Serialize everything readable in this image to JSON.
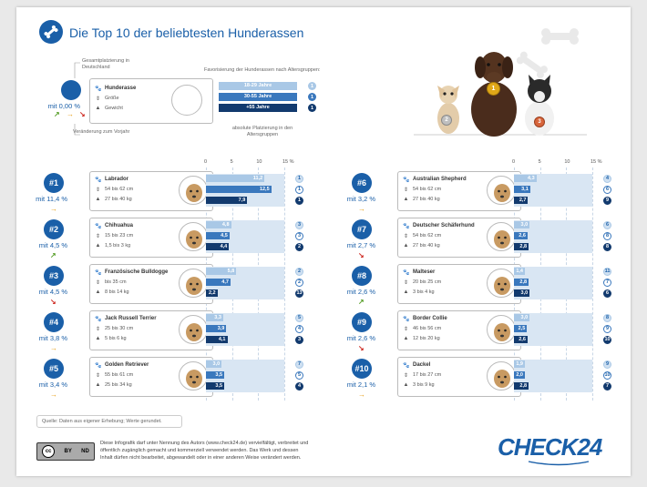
{
  "header": {
    "title": "Die Top 10 der beliebtesten Hunderassen"
  },
  "legend": {
    "gesamt_label": "Gesamtplatzierung in Deutschland",
    "mit_value": "mit 0,00 %",
    "veraenderung_label": "Veränderung zum Vorjahr",
    "attr_breed": "Hunderasse",
    "attr_size": "Größe",
    "attr_weight": "Gewicht",
    "favor_label": "Favorisierung der Hunderassen nach Altersgruppen:",
    "groups": [
      "18-29 Jahre",
      "30-55 Jahre",
      "+55 Jahre"
    ],
    "places": [
      "1",
      "1",
      "1"
    ],
    "absolute_label": "absolute Platzierung in den Altersgruppen"
  },
  "podium": [
    "1",
    "2",
    "3"
  ],
  "axis_ticks": [
    "0",
    "5",
    "10",
    "15 %"
  ],
  "colors": {
    "accent": "#1a5fa8",
    "bar_young": "#a9c8e6",
    "bar_mid": "#3a78bd",
    "bar_old": "#123a6e",
    "up": "#5aa02c",
    "down": "#d0342c",
    "flat": "#e8a11a"
  },
  "footer": {
    "source": "Quelle: Daten aus eigener Erhebung; Werte gerundet.",
    "license_icon": "cc-by-nd-icon",
    "license_labels": [
      "cc",
      "BY",
      "ND"
    ],
    "license_text_1": "Diese Infografik darf unter Nennung des Autors (www.check24.de) vervielfältigt, verbreitet und",
    "license_text_2": "öffentlich zugänglich gemacht und kommerziell verwendet werden. Das Werk und dessen",
    "license_text_3": "Inhalt dürfen nicht bearbeitet, abgewandelt oder in einer anderen Weise verändert werden.",
    "brand": "CHECK24"
  },
  "chart_data": {
    "type": "bar",
    "title": "Die Top 10 der beliebtesten Hunderassen",
    "xlim": [
      0,
      15
    ],
    "x_unit": "%",
    "series_order": [
      "18-29 Jahre",
      "30-55 Jahre",
      "+55 Jahre"
    ],
    "breeds": [
      {
        "rank": "#1",
        "name": "Labrador",
        "size": "54 bis 62 cm",
        "weight": "27 bis 40 kg",
        "share": "mit 11,4 %",
        "trend": "flat",
        "values": [
          11.2,
          12.5,
          7.9
        ],
        "labels": [
          "11,2",
          "12,5",
          "7,9"
        ],
        "places": [
          "1",
          "1",
          "1"
        ]
      },
      {
        "rank": "#2",
        "name": "Chihuahua",
        "size": "15 bis 23 cm",
        "weight": "1,5 bis 3 kg",
        "share": "mit 4,5 %",
        "trend": "up",
        "values": [
          4.8,
          4.5,
          4.4
        ],
        "labels": [
          "4,8",
          "4,5",
          "4,4"
        ],
        "places": [
          "3",
          "3",
          "2"
        ]
      },
      {
        "rank": "#3",
        "name": "Französische Bulldogge",
        "size": "bis 35 cm",
        "weight": "8 bis 14 kg",
        "share": "mit 4,5 %",
        "trend": "down",
        "values": [
          5.8,
          4.7,
          2.2
        ],
        "labels": [
          "5,8",
          "4,7",
          "2,2"
        ],
        "places": [
          "2",
          "2",
          "13"
        ]
      },
      {
        "rank": "#4",
        "name": "Jack Russell Terrier",
        "size": "25 bis 30 cm",
        "weight": "5 bis 6 kg",
        "share": "mit 3,8 %",
        "trend": "flat",
        "values": [
          3.3,
          3.9,
          4.1
        ],
        "labels": [
          "3,3",
          "3,9",
          "4,1"
        ],
        "places": [
          "5",
          "4",
          "3"
        ]
      },
      {
        "rank": "#5",
        "name": "Golden Retriever",
        "size": "55 bis 61 cm",
        "weight": "25 bis 34 kg",
        "share": "mit 3,4 %",
        "trend": "flat",
        "values": [
          3.0,
          3.5,
          3.5
        ],
        "labels": [
          "3,0",
          "3,5",
          "3,5"
        ],
        "places": [
          "7",
          "5",
          "4"
        ]
      },
      {
        "rank": "#6",
        "name": "Australian Shepherd",
        "size": "54 bis 62 cm",
        "weight": "27 bis 40 kg",
        "share": "mit 3,2 %",
        "trend": "flat",
        "values": [
          4.3,
          3.1,
          2.7
        ],
        "labels": [
          "4,3",
          "3,1",
          "2,7"
        ],
        "places": [
          "4",
          "6",
          "9"
        ]
      },
      {
        "rank": "#7",
        "name": "Deutscher Schäferhund",
        "size": "54 bis 62 cm",
        "weight": "27 bis 40 kg",
        "share": "mit 2,7 %",
        "trend": "down",
        "values": [
          3.0,
          2.6,
          2.8
        ],
        "labels": [
          "3,0",
          "2,6",
          "2,8"
        ],
        "places": [
          "6",
          "8",
          "8"
        ]
      },
      {
        "rank": "#8",
        "name": "Malteser",
        "size": "20 bis 25 cm",
        "weight": "3 bis 4 kg",
        "share": "mit 2,6 %",
        "trend": "up",
        "values": [
          1.4,
          2.8,
          3.0
        ],
        "labels": [
          "1,4",
          "2,8",
          "3,0"
        ],
        "places": [
          "11",
          "7",
          "6"
        ]
      },
      {
        "rank": "#9",
        "name": "Border Collie",
        "size": "46 bis 56 cm",
        "weight": "12 bis 20 kg",
        "share": "mit 2,6 %",
        "trend": "down",
        "values": [
          3.0,
          2.5,
          2.6
        ],
        "labels": [
          "3,0",
          "2,5",
          "2,6"
        ],
        "places": [
          "8",
          "9",
          "10"
        ]
      },
      {
        "rank": "#10",
        "name": "Dackel",
        "size": "17 bis 27 cm",
        "weight": "3 bis 9 kg",
        "share": "mit 2,1 %",
        "trend": "flat",
        "values": [
          1.9,
          2.0,
          2.8
        ],
        "labels": [
          "1,9",
          "2,0",
          "2,8"
        ],
        "places": [
          "9",
          "10",
          "7"
        ]
      }
    ]
  }
}
